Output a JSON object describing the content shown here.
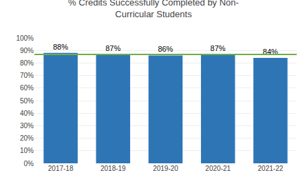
{
  "chart_data": {
    "type": "bar",
    "title": "% Credits Successfully Completed by Non-\nCurricular Students",
    "categories": [
      "2017-18",
      "2018-19",
      "2019-20",
      "2020-21",
      "2021-22"
    ],
    "values": [
      0.88,
      0.87,
      0.86,
      0.87,
      0.84
    ],
    "value_labels": [
      "88%",
      "87%",
      "86%",
      "87%",
      "84%"
    ],
    "data_labels": true,
    "color": "#2E75B6",
    "reference_line": {
      "y": 0.868,
      "color": "#70AD47"
    },
    "ylim": [
      0,
      1.0
    ],
    "yticks": [
      {
        "value": 0,
        "label": "0%"
      },
      {
        "value": 0.1,
        "label": "10%"
      },
      {
        "value": 0.2,
        "label": "20%"
      },
      {
        "value": 0.3,
        "label": "30%"
      },
      {
        "value": 0.4,
        "label": "40%"
      },
      {
        "value": 0.5,
        "label": "50%"
      },
      {
        "value": 0.6,
        "label": "60%"
      },
      {
        "value": 0.7,
        "label": "70%"
      },
      {
        "value": 0.8,
        "label": "80%"
      },
      {
        "value": 0.9,
        "label": "90%"
      },
      {
        "value": 1.0,
        "label": "100%"
      }
    ],
    "grid": true
  }
}
